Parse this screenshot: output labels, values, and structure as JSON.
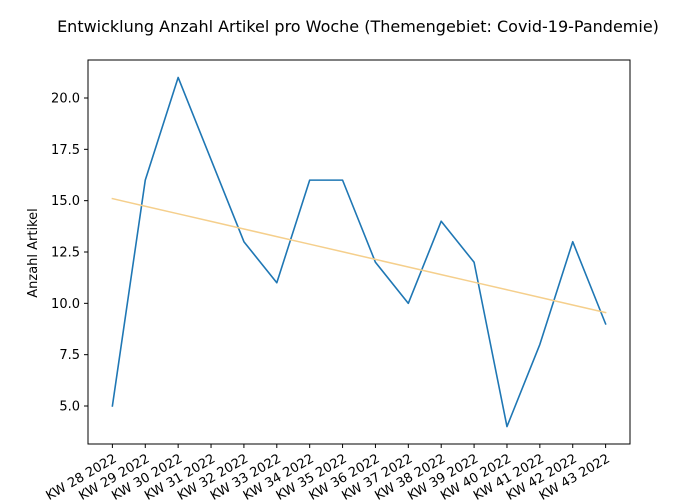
{
  "chart_data": {
    "type": "line",
    "title": "Entwicklung Anzahl Artikel pro Woche (Themengebiet: Covid-19-Pandemie)",
    "xlabel": "",
    "ylabel": "Anzahl Artikel",
    "categories": [
      "KW 28 2022",
      "KW 29 2022",
      "KW 30 2022",
      "KW 31 2022",
      "KW 32 2022",
      "KW 33 2022",
      "KW 34 2022",
      "KW 35 2022",
      "KW 36 2022",
      "KW 37 2022",
      "KW 38 2022",
      "KW 39 2022",
      "KW 40 2022",
      "KW 41 2022",
      "KW 42 2022",
      "KW 43 2022"
    ],
    "series": [
      {
        "values": [
          5,
          16,
          21,
          17,
          13,
          11,
          16,
          16,
          12,
          10,
          14,
          12,
          4,
          8,
          13,
          9
        ],
        "color": "#1f77b4"
      },
      {
        "values": [
          15.1,
          14.73,
          14.36,
          13.99,
          13.62,
          13.25,
          12.88,
          12.51,
          12.14,
          11.77,
          11.4,
          11.03,
          10.66,
          10.29,
          9.92,
          9.55
        ],
        "color": "#f5cf8c"
      }
    ],
    "ylim": [
      3.15,
      21.85
    ],
    "yticks": [
      5.0,
      7.5,
      10.0,
      12.5,
      15.0,
      17.5,
      20.0
    ],
    "ytick_labels": [
      "5.0",
      "7.5",
      "10.0",
      "12.5",
      "15.0",
      "17.5",
      "20.0"
    ],
    "grid": false,
    "legend": "none"
  }
}
